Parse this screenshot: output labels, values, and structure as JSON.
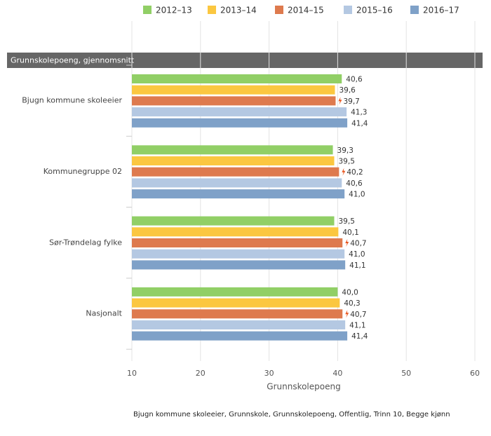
{
  "chart_data": {
    "type": "hbar",
    "title": "Grunnskolepoeng, gjennomsnitt",
    "categories": [
      "Bjugn kommune skoleeier",
      "Kommunegruppe 02",
      "Sør-Trøndelag fylke",
      "Nasjonalt"
    ],
    "series": [
      {
        "name": "2012–13",
        "color": "#91cf66",
        "values": [
          40.6,
          39.3,
          39.5,
          40.0
        ],
        "value_labels": [
          "40,6",
          "39,3",
          "39,5",
          "40,0"
        ]
      },
      {
        "name": "2013–14",
        "color": "#fbc740",
        "values": [
          39.6,
          39.5,
          40.1,
          40.3
        ],
        "value_labels": [
          "39,6",
          "39,5",
          "40,1",
          "40,3"
        ]
      },
      {
        "name": "2014–15",
        "color": "#de7a4e",
        "values": [
          39.7,
          40.2,
          40.7,
          40.7
        ],
        "value_labels": [
          "39,7",
          "40,2",
          "40,7",
          "40,7"
        ]
      },
      {
        "name": "2015–16",
        "color": "#b4c8e2",
        "values": [
          41.3,
          40.6,
          41.0,
          41.1
        ],
        "value_labels": [
          "41,3",
          "40,6",
          "41,0",
          "41,1"
        ]
      },
      {
        "name": "2016–17",
        "color": "#7fa1c8",
        "values": [
          41.4,
          41.0,
          41.1,
          41.4
        ],
        "value_labels": [
          "41,4",
          "41,0",
          "41,1",
          "41,4"
        ]
      }
    ],
    "xlim": [
      10,
      60
    ],
    "xticks": [
      10,
      20,
      30,
      40,
      50,
      60
    ],
    "xlabel": "Grunnskolepoeng",
    "grid": true,
    "footnote": "Bjugn kommune skoleeier, Grunnskole, Grunnskolepoeng, Offentlig, Trinn 10, Begge kjønn"
  }
}
